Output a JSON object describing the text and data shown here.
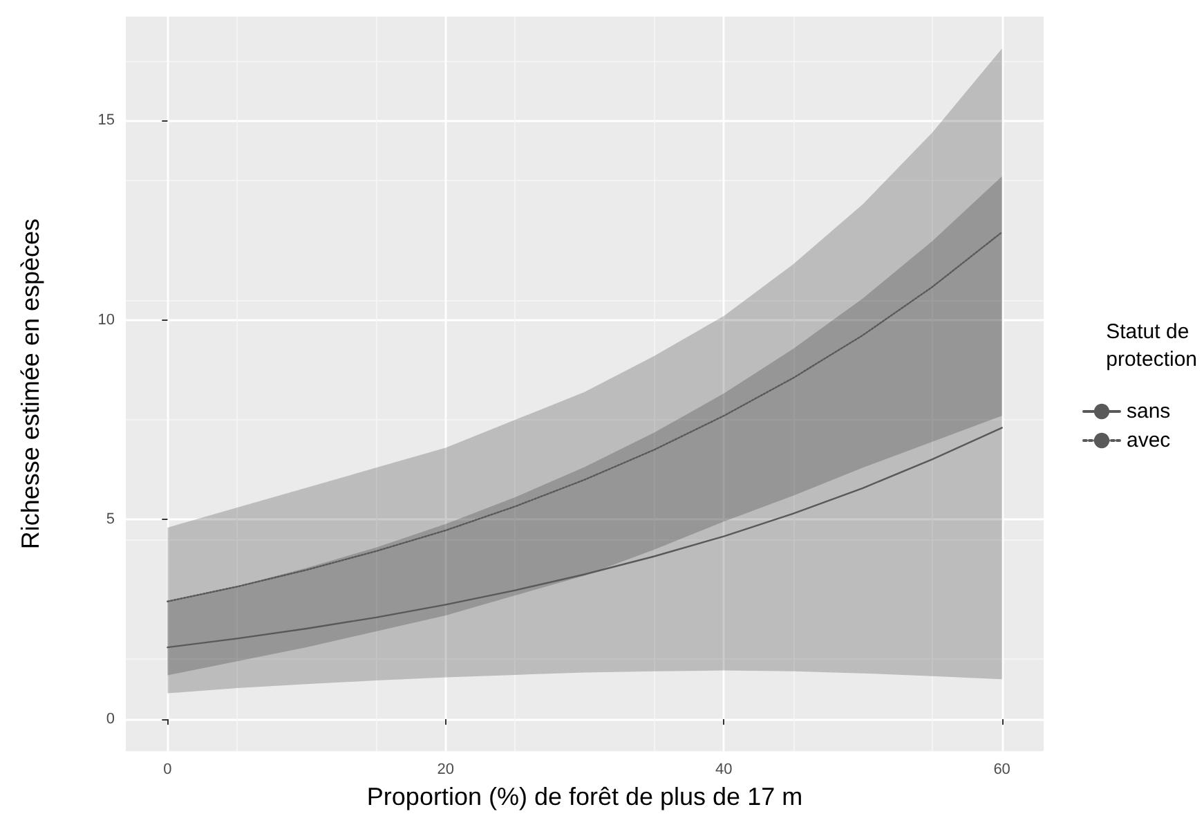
{
  "chart_data": {
    "type": "line",
    "xlabel": "Proportion (%) de forêt de plus de 17 m",
    "ylabel": "Richesse estimée en espèces",
    "legend_title": "Statut de protection",
    "x": [
      0,
      5,
      10,
      15,
      20,
      25,
      30,
      35,
      40,
      45,
      50,
      55,
      60
    ],
    "series": [
      {
        "name": "sans",
        "color": "#595959",
        "line_style": "solid",
        "values": [
          1.8,
          2.02,
          2.27,
          2.55,
          2.87,
          3.23,
          3.63,
          4.08,
          4.58,
          5.15,
          5.79,
          6.51,
          7.3
        ],
        "lower": [
          0.65,
          0.78,
          0.88,
          0.97,
          1.05,
          1.11,
          1.17,
          1.2,
          1.22,
          1.2,
          1.15,
          1.08,
          1.0
        ],
        "upper": [
          2.93,
          3.33,
          3.79,
          4.3,
          4.89,
          5.56,
          6.32,
          7.18,
          8.16,
          9.28,
          10.54,
          11.98,
          13.6
        ]
      },
      {
        "name": "avec",
        "color": "#595959",
        "line_style": "dotted",
        "values": [
          2.95,
          3.32,
          3.74,
          4.21,
          4.73,
          5.33,
          6.0,
          6.75,
          7.6,
          8.55,
          9.62,
          10.83,
          12.2
        ],
        "lower": [
          1.1,
          1.45,
          1.8,
          2.2,
          2.6,
          3.1,
          3.6,
          4.25,
          4.95,
          5.6,
          6.3,
          6.95,
          7.6
        ],
        "upper": [
          4.8,
          5.3,
          5.8,
          6.3,
          6.8,
          7.5,
          8.2,
          9.1,
          10.1,
          11.4,
          12.9,
          14.7,
          16.8
        ]
      }
    ],
    "xlim": [
      -3,
      63
    ],
    "ylim": [
      -0.8,
      17.6
    ],
    "xticks": [
      0,
      20,
      40,
      60
    ],
    "yticks": [
      0,
      5,
      10,
      15
    ],
    "grid": true,
    "legend": "right",
    "marker": "none"
  }
}
